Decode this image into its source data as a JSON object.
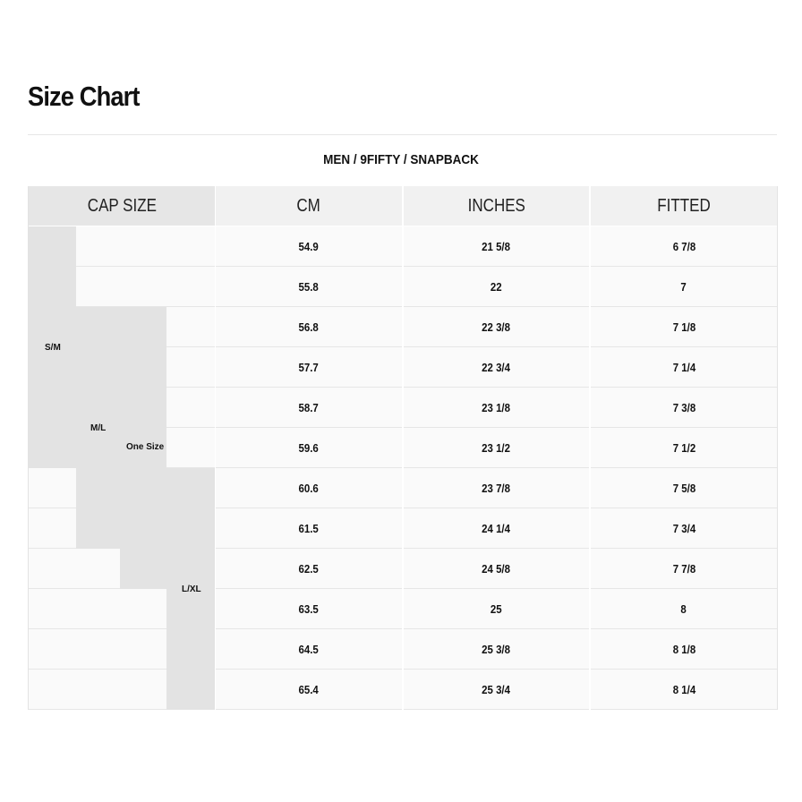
{
  "title": "Size Chart",
  "subtitle": "MEN / 9FIFTY / SNAPBACK",
  "headers": [
    "CAP SIZE",
    "CM",
    "INCHES",
    "FITTED"
  ],
  "cap_sizes": {
    "sm": "S/M",
    "ml": "M/L",
    "one": "One Size",
    "lxl": "L/XL"
  },
  "rows": [
    {
      "cm": "54.9",
      "in": "21 5/8",
      "fit": "6 7/8"
    },
    {
      "cm": "55.8",
      "in": "22",
      "fit": "7"
    },
    {
      "cm": "56.8",
      "in": "22 3/8",
      "fit": "7 1/8"
    },
    {
      "cm": "57.7",
      "in": "22 3/4",
      "fit": "7 1/4"
    },
    {
      "cm": "58.7",
      "in": "23 1/8",
      "fit": "7 3/8"
    },
    {
      "cm": "59.6",
      "in": "23 1/2",
      "fit": "7 1/2"
    },
    {
      "cm": "60.6",
      "in": "23 7/8",
      "fit": "7 5/8"
    },
    {
      "cm": "61.5",
      "in": "24 1/4",
      "fit": "7 3/4"
    },
    {
      "cm": "62.5",
      "in": "24 5/8",
      "fit": "7 7/8"
    },
    {
      "cm": "63.5",
      "in": "25",
      "fit": "8"
    },
    {
      "cm": "64.5",
      "in": "25 3/8",
      "fit": "8 1/8"
    },
    {
      "cm": "65.4",
      "in": "25 3/4",
      "fit": "8 1/4"
    }
  ]
}
